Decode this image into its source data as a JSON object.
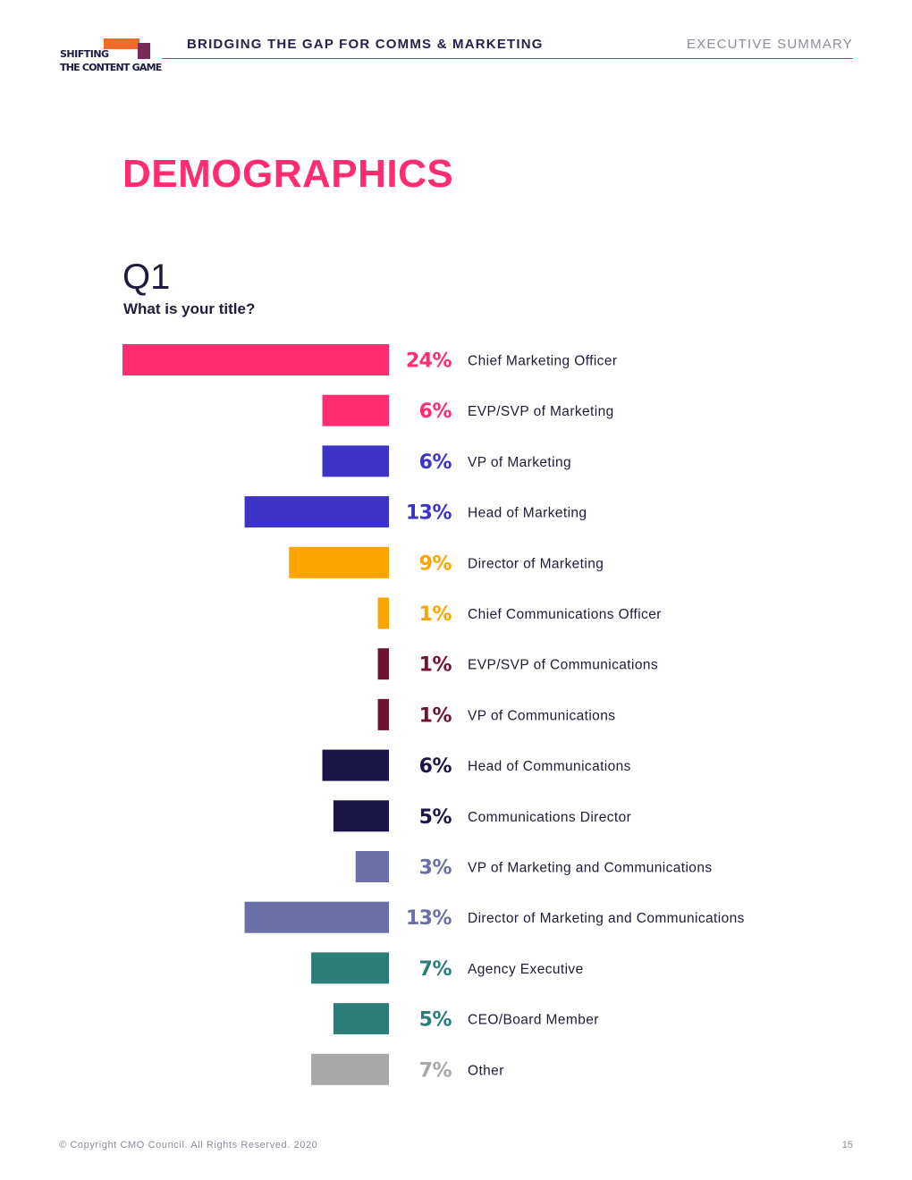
{
  "header": {
    "logo_line1": "SHIFTING",
    "logo_line2": "THE CONTENT GAME",
    "report_title": "BRIDGING THE GAP FOR COMMS & MARKETING",
    "section": "EXECUTIVE SUMMARY"
  },
  "page_title": "DEMOGRAPHICS",
  "question": {
    "number": "Q1",
    "text": "What is your title?"
  },
  "chart_data": {
    "type": "bar",
    "orientation": "horizontal",
    "direction": "right-to-left",
    "categories": [
      "Chief Marketing Officer",
      "EVP/SVP of Marketing",
      "VP of Marketing",
      "Head of Marketing",
      "Director of Marketing",
      "Chief Communications Officer",
      "EVP/SVP of Communications",
      "VP of Communications",
      "Head of Communications",
      "Communications Director",
      "VP of Marketing and Communications",
      "Director of Marketing and Communications",
      "Agency Executive",
      "CEO/Board Member",
      "Other"
    ],
    "values": [
      24,
      6,
      6,
      13,
      9,
      1,
      1,
      1,
      6,
      5,
      3,
      13,
      7,
      5,
      7
    ],
    "value_labels": [
      "24%",
      "6%",
      "6%",
      "13%",
      "9%",
      "1%",
      "1%",
      "1%",
      "6%",
      "5%",
      "3%",
      "13%",
      "7%",
      "5%",
      "7%"
    ],
    "colors": [
      "#ff2d6f",
      "#ff2d6f",
      "#3d33c9",
      "#3d33c9",
      "#ffa300",
      "#ffa300",
      "#701232",
      "#701232",
      "#1b1547",
      "#1b1547",
      "#6b6fa8",
      "#6b6fa8",
      "#2b7e78",
      "#2b7e78",
      "#a8a8a8"
    ],
    "xlim": [
      0,
      24
    ],
    "grid": false,
    "legend": "none"
  },
  "footer": {
    "copyright": "© Copyright CMO Council. All Rights Reserved. 2020",
    "page_number": "15"
  }
}
